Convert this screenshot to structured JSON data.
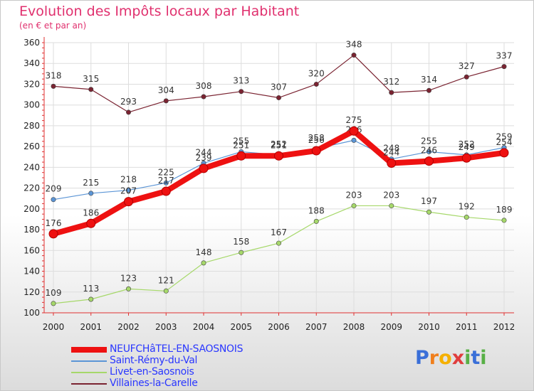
{
  "title": "Evolution des Impôts locaux par Habitant",
  "subtitle": "(en € et par an)",
  "logo": {
    "letters": [
      "P",
      "r",
      "o",
      "x",
      "i",
      "t",
      "i"
    ],
    "colors": [
      "#3a6fd8",
      "#f07f1c",
      "#f5b000",
      "#e03d3d",
      "#58b046",
      "#3a6fd8",
      "#58b046"
    ]
  },
  "chart_data": {
    "type": "line",
    "categories": [
      "2000",
      "2001",
      "2002",
      "2003",
      "2004",
      "2005",
      "2006",
      "2007",
      "2008",
      "2009",
      "2010",
      "2011",
      "2012"
    ],
    "ylim": [
      100,
      360
    ],
    "yticks": [
      100,
      120,
      140,
      160,
      180,
      200,
      220,
      240,
      260,
      280,
      300,
      320,
      340,
      360
    ],
    "series": [
      {
        "name": "Villaines-la-Carelle",
        "color": "#7a2331",
        "values": [
          318,
          315,
          293,
          304,
          308,
          313,
          307,
          320,
          348,
          312,
          314,
          327,
          337
        ]
      },
      {
        "name": "Saint-Rémy-du-Val",
        "color": "#5b95d6",
        "values": [
          209,
          215,
          218,
          225,
          244,
          255,
          252,
          258,
          266,
          248,
          255,
          252,
          259
        ]
      },
      {
        "name": "Livet-en-Saosnois",
        "color": "#a6d86a",
        "values": [
          109,
          113,
          123,
          121,
          148,
          158,
          167,
          188,
          203,
          203,
          197,
          192,
          189
        ]
      },
      {
        "name": "NEUFCHâTEL-EN-SAOSNOIS",
        "color": "#ee1111",
        "values": [
          176,
          186,
          207,
          217,
          239,
          251,
          251,
          256,
          275,
          244,
          246,
          249,
          254
        ]
      }
    ],
    "legend": [
      "NEUFCHâTEL-EN-SAOSNOIS",
      "Saint-Rémy-du-Val",
      "Livet-en-Saosnois",
      "Villaines-la-Carelle"
    ]
  }
}
